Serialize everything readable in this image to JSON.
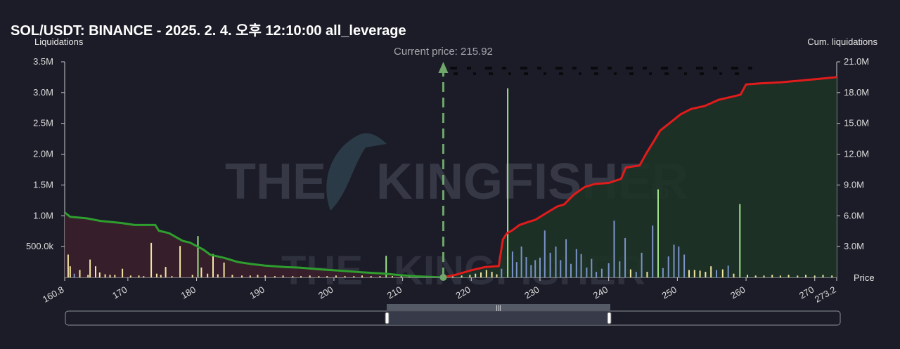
{
  "title": "SOL/USDT: BINANCE - 2025. 2. 4. 오후 12:10:00 all_leverage",
  "colors": {
    "background": "#1b1c27",
    "short_cum_line": "#e21b1b",
    "long_cum_line": "#2e9e2e",
    "short_fill": "#1d3326",
    "long_fill": "#3a1f2b",
    "bar_yellow": "#f3e7a3",
    "bar_green": "#9fe38a",
    "bar_blue": "#7b93c9",
    "current_price": "#6fa86a"
  },
  "chart_data": {
    "type": "bar",
    "title": "SOL/USDT: BINANCE - 2025. 2. 4. 오후 12:10:00 all_leverage",
    "ylabel": "Liquidations",
    "y2label": "Cum. liquidations",
    "xlabel": "Price",
    "xlim": [
      160.8,
      273.2
    ],
    "ylim": [
      0,
      3500000
    ],
    "y2lim": [
      0,
      21000000
    ],
    "x_ticks": [
      "160.8",
      "170",
      "180",
      "190",
      "200",
      "210",
      "220",
      "230",
      "240",
      "250",
      "260",
      "270",
      "273.2"
    ],
    "y_ticks": [
      "500.0k",
      "1.0M",
      "1.5M",
      "2.0M",
      "2.5M",
      "3.0M",
      "3.5M"
    ],
    "y2_ticks": [
      "3.0M",
      "6.0M",
      "9.0M",
      "12.0M",
      "15.0M",
      "18.0M",
      "21.0M"
    ],
    "current_price": 215.92,
    "current_price_label": "Current price: 215.92",
    "watermark": "THE KINGFISHER.io",
    "bars": [
      {
        "x": 161.6,
        "y": 180000,
        "color": "yellow"
      },
      {
        "x": 161.3,
        "y": 370000,
        "color": "yellow"
      },
      {
        "x": 162.2,
        "y": 60000,
        "color": "blue"
      },
      {
        "x": 163.0,
        "y": 120000,
        "color": "yellow"
      },
      {
        "x": 164.2,
        "y": 40000,
        "color": "yellow"
      },
      {
        "x": 164.5,
        "y": 290000,
        "color": "yellow"
      },
      {
        "x": 165.3,
        "y": 180000,
        "color": "yellow"
      },
      {
        "x": 165.9,
        "y": 80000,
        "color": "yellow"
      },
      {
        "x": 166.7,
        "y": 50000,
        "color": "yellow"
      },
      {
        "x": 167.4,
        "y": 40000,
        "color": "yellow"
      },
      {
        "x": 168.1,
        "y": 40000,
        "color": "yellow"
      },
      {
        "x": 169.2,
        "y": 140000,
        "color": "yellow"
      },
      {
        "x": 170.4,
        "y": 30000,
        "color": "yellow"
      },
      {
        "x": 171.6,
        "y": 30000,
        "color": "yellow"
      },
      {
        "x": 172.3,
        "y": 20000,
        "color": "yellow"
      },
      {
        "x": 173.4,
        "y": 560000,
        "color": "yellow"
      },
      {
        "x": 174.2,
        "y": 60000,
        "color": "yellow"
      },
      {
        "x": 174.8,
        "y": 40000,
        "color": "yellow"
      },
      {
        "x": 175.5,
        "y": 170000,
        "color": "yellow"
      },
      {
        "x": 176.4,
        "y": 20000,
        "color": "yellow"
      },
      {
        "x": 177.6,
        "y": 510000,
        "color": "yellow"
      },
      {
        "x": 179.4,
        "y": 40000,
        "color": "yellow"
      },
      {
        "x": 180.2,
        "y": 670000,
        "color": "green"
      },
      {
        "x": 180.7,
        "y": 160000,
        "color": "yellow"
      },
      {
        "x": 181.6,
        "y": 60000,
        "color": "yellow"
      },
      {
        "x": 182.4,
        "y": 380000,
        "color": "yellow"
      },
      {
        "x": 183.1,
        "y": 50000,
        "color": "yellow"
      },
      {
        "x": 184.0,
        "y": 240000,
        "color": "yellow"
      },
      {
        "x": 185.2,
        "y": 40000,
        "color": "yellow"
      },
      {
        "x": 186.6,
        "y": 30000,
        "color": "yellow"
      },
      {
        "x": 187.8,
        "y": 30000,
        "color": "yellow"
      },
      {
        "x": 188.9,
        "y": 40000,
        "color": "yellow"
      },
      {
        "x": 190.0,
        "y": 30000,
        "color": "yellow"
      },
      {
        "x": 191.4,
        "y": 20000,
        "color": "yellow"
      },
      {
        "x": 192.6,
        "y": 30000,
        "color": "yellow"
      },
      {
        "x": 194.0,
        "y": 20000,
        "color": "yellow"
      },
      {
        "x": 195.2,
        "y": 20000,
        "color": "yellow"
      },
      {
        "x": 196.5,
        "y": 30000,
        "color": "yellow"
      },
      {
        "x": 197.8,
        "y": 20000,
        "color": "yellow"
      },
      {
        "x": 199.0,
        "y": 20000,
        "color": "yellow"
      },
      {
        "x": 200.3,
        "y": 30000,
        "color": "yellow"
      },
      {
        "x": 201.6,
        "y": 20000,
        "color": "yellow"
      },
      {
        "x": 202.9,
        "y": 20000,
        "color": "yellow"
      },
      {
        "x": 204.1,
        "y": 30000,
        "color": "yellow"
      },
      {
        "x": 205.4,
        "y": 20000,
        "color": "yellow"
      },
      {
        "x": 206.7,
        "y": 20000,
        "color": "yellow"
      },
      {
        "x": 207.6,
        "y": 350000,
        "color": "green"
      },
      {
        "x": 208.5,
        "y": 20000,
        "color": "yellow"
      },
      {
        "x": 209.8,
        "y": 20000,
        "color": "yellow"
      },
      {
        "x": 211.0,
        "y": 20000,
        "color": "yellow"
      },
      {
        "x": 212.3,
        "y": 20000,
        "color": "yellow"
      },
      {
        "x": 213.5,
        "y": 20000,
        "color": "yellow"
      },
      {
        "x": 214.6,
        "y": 20000,
        "color": "yellow"
      },
      {
        "x": 217.3,
        "y": 20000,
        "color": "yellow"
      },
      {
        "x": 218.6,
        "y": 30000,
        "color": "yellow"
      },
      {
        "x": 219.8,
        "y": 40000,
        "color": "yellow"
      },
      {
        "x": 220.6,
        "y": 60000,
        "color": "yellow"
      },
      {
        "x": 221.4,
        "y": 80000,
        "color": "yellow"
      },
      {
        "x": 222.2,
        "y": 120000,
        "color": "yellow"
      },
      {
        "x": 223.0,
        "y": 90000,
        "color": "yellow"
      },
      {
        "x": 223.7,
        "y": 50000,
        "color": "yellow"
      },
      {
        "x": 224.4,
        "y": 140000,
        "color": "blue"
      },
      {
        "x": 225.3,
        "y": 3070000,
        "color": "green"
      },
      {
        "x": 226.0,
        "y": 420000,
        "color": "blue"
      },
      {
        "x": 226.6,
        "y": 250000,
        "color": "blue"
      },
      {
        "x": 227.3,
        "y": 500000,
        "color": "blue"
      },
      {
        "x": 228.0,
        "y": 330000,
        "color": "blue"
      },
      {
        "x": 228.7,
        "y": 200000,
        "color": "blue"
      },
      {
        "x": 229.3,
        "y": 280000,
        "color": "blue"
      },
      {
        "x": 230.0,
        "y": 320000,
        "color": "blue"
      },
      {
        "x": 230.7,
        "y": 760000,
        "color": "blue"
      },
      {
        "x": 231.5,
        "y": 400000,
        "color": "blue"
      },
      {
        "x": 232.3,
        "y": 500000,
        "color": "blue"
      },
      {
        "x": 233.0,
        "y": 280000,
        "color": "blue"
      },
      {
        "x": 233.8,
        "y": 620000,
        "color": "blue"
      },
      {
        "x": 234.5,
        "y": 220000,
        "color": "blue"
      },
      {
        "x": 235.3,
        "y": 460000,
        "color": "blue"
      },
      {
        "x": 236.0,
        "y": 380000,
        "color": "blue"
      },
      {
        "x": 236.8,
        "y": 160000,
        "color": "blue"
      },
      {
        "x": 237.5,
        "y": 300000,
        "color": "blue"
      },
      {
        "x": 238.2,
        "y": 90000,
        "color": "blue"
      },
      {
        "x": 239.0,
        "y": 140000,
        "color": "blue"
      },
      {
        "x": 240.0,
        "y": 230000,
        "color": "blue"
      },
      {
        "x": 240.8,
        "y": 920000,
        "color": "blue"
      },
      {
        "x": 241.6,
        "y": 260000,
        "color": "blue"
      },
      {
        "x": 242.4,
        "y": 640000,
        "color": "blue"
      },
      {
        "x": 243.2,
        "y": 130000,
        "color": "yellow"
      },
      {
        "x": 244.0,
        "y": 90000,
        "color": "blue"
      },
      {
        "x": 244.8,
        "y": 400000,
        "color": "blue"
      },
      {
        "x": 245.6,
        "y": 90000,
        "color": "yellow"
      },
      {
        "x": 246.4,
        "y": 840000,
        "color": "blue"
      },
      {
        "x": 247.2,
        "y": 1430000,
        "color": "green"
      },
      {
        "x": 247.9,
        "y": 150000,
        "color": "blue"
      },
      {
        "x": 248.7,
        "y": 340000,
        "color": "blue"
      },
      {
        "x": 249.5,
        "y": 530000,
        "color": "blue"
      },
      {
        "x": 250.2,
        "y": 500000,
        "color": "blue"
      },
      {
        "x": 251.0,
        "y": 370000,
        "color": "blue"
      },
      {
        "x": 251.7,
        "y": 120000,
        "color": "yellow"
      },
      {
        "x": 252.5,
        "y": 120000,
        "color": "yellow"
      },
      {
        "x": 253.3,
        "y": 110000,
        "color": "yellow"
      },
      {
        "x": 254.1,
        "y": 90000,
        "color": "yellow"
      },
      {
        "x": 254.9,
        "y": 180000,
        "color": "yellow"
      },
      {
        "x": 255.7,
        "y": 120000,
        "color": "blue"
      },
      {
        "x": 256.6,
        "y": 130000,
        "color": "yellow"
      },
      {
        "x": 257.4,
        "y": 190000,
        "color": "blue"
      },
      {
        "x": 258.2,
        "y": 60000,
        "color": "yellow"
      },
      {
        "x": 259.1,
        "y": 1190000,
        "color": "green"
      },
      {
        "x": 260.2,
        "y": 40000,
        "color": "yellow"
      },
      {
        "x": 261.4,
        "y": 30000,
        "color": "yellow"
      },
      {
        "x": 262.6,
        "y": 30000,
        "color": "yellow"
      },
      {
        "x": 263.8,
        "y": 40000,
        "color": "yellow"
      },
      {
        "x": 265.0,
        "y": 30000,
        "color": "yellow"
      },
      {
        "x": 266.2,
        "y": 40000,
        "color": "yellow"
      },
      {
        "x": 267.5,
        "y": 30000,
        "color": "yellow"
      },
      {
        "x": 268.7,
        "y": 40000,
        "color": "yellow"
      },
      {
        "x": 270.0,
        "y": 30000,
        "color": "yellow"
      },
      {
        "x": 271.2,
        "y": 40000,
        "color": "yellow"
      },
      {
        "x": 272.5,
        "y": 30000,
        "color": "yellow"
      }
    ],
    "series": [
      {
        "key": "long_cumulative",
        "color": "green",
        "x": [
          160.8,
          161.6,
          164.0,
          166.0,
          169.0,
          171.0,
          172.0,
          174.0,
          174.5,
          176.0,
          178.0,
          179.0,
          181.0,
          182.0,
          184.0,
          186.0,
          188.0,
          190.0,
          193.0,
          195.0,
          198.0,
          201.0,
          204.0,
          207.0,
          210.0,
          212.0,
          215.92
        ],
        "y": [
          6330000,
          5900000,
          5750000,
          5500000,
          5300000,
          5100000,
          5100000,
          5100000,
          4550000,
          4300000,
          3550000,
          3400000,
          2700000,
          2200000,
          1900000,
          1500000,
          1300000,
          1150000,
          1000000,
          950000,
          780000,
          650000,
          500000,
          380000,
          200000,
          100000,
          0
        ]
      },
      {
        "key": "short_cumulative",
        "color": "red",
        "x": [
          215.92,
          218.0,
          220.0,
          222.0,
          224.0,
          224.6,
          225.2,
          226.0,
          227.0,
          228.3,
          229.3,
          231.0,
          232.5,
          233.5,
          235.0,
          236.5,
          238.0,
          240.0,
          241.8,
          242.5,
          244.5,
          245.5,
          246.6,
          247.5,
          249.0,
          250.5,
          252.0,
          254.0,
          256.0,
          258.0,
          259.2,
          260.0,
          262.0,
          265.0,
          270.0,
          273.2
        ],
        "y": [
          0,
          300000,
          700000,
          1000000,
          1100000,
          3700000,
          4300000,
          4600000,
          5100000,
          5400000,
          5600000,
          6300000,
          6900000,
          7100000,
          8100000,
          8800000,
          9100000,
          9200000,
          9600000,
          10700000,
          10900000,
          12100000,
          13300000,
          14300000,
          15100000,
          15900000,
          16400000,
          16700000,
          17300000,
          17600000,
          17800000,
          18800000,
          18900000,
          19000000,
          19300000,
          19500000
        ]
      }
    ]
  }
}
